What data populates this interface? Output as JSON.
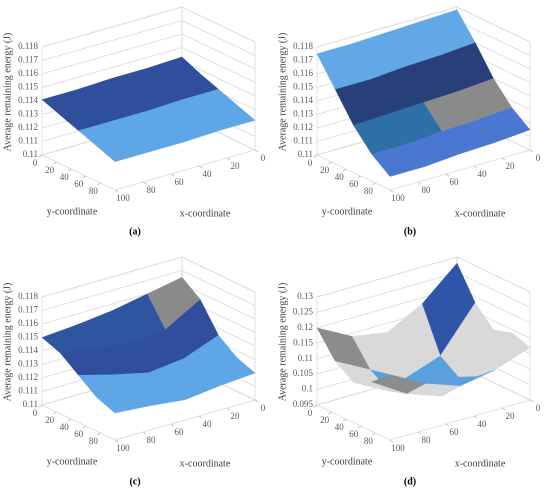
{
  "chart_data": [
    {
      "type": "surface",
      "label": "(a)",
      "zlabel": "Average remaining energy (J)",
      "xlabel": "x-coordinate",
      "ylabel": "y-coordinate",
      "x": [
        0,
        25,
        50,
        75,
        100
      ],
      "y": [
        0,
        25,
        50,
        75,
        100
      ],
      "xlim": [
        0,
        100
      ],
      "ylim": [
        0,
        100
      ],
      "xticks": [
        0,
        20,
        40,
        60,
        80,
        100
      ],
      "yticks": [
        0,
        20,
        40,
        60,
        80
      ],
      "zlim": [
        0.11,
        0.118
      ],
      "zticks": [
        0.11,
        0.111,
        0.112,
        0.113,
        0.114,
        0.115,
        0.116,
        0.117,
        0.118
      ],
      "colors": [
        "#4a78d0",
        "#3f7cc4",
        "#5ea6e6",
        "#2f4f9c",
        "#8a8a8a",
        "#27407a",
        "#63a8e6",
        "#6fb0ea"
      ],
      "z": [
        [
          0.1143,
          0.1142,
          0.1142,
          0.1141,
          0.1141
        ],
        [
          0.1137,
          0.1137,
          0.1136,
          0.1136,
          0.1136
        ],
        [
          0.1132,
          0.1132,
          0.1131,
          0.1131,
          0.1131
        ],
        [
          0.1127,
          0.1127,
          0.1126,
          0.1126,
          0.1126
        ],
        [
          0.1122,
          0.1122,
          0.1121,
          0.1121,
          0.1121
        ]
      ]
    },
    {
      "type": "surface",
      "label": "(b)",
      "zlabel": "Average remaining energy (J)",
      "xlabel": "x-coordinate",
      "ylabel": "y-coordinate",
      "x": [
        0,
        25,
        50,
        75,
        100
      ],
      "y": [
        0,
        25,
        50,
        75,
        100
      ],
      "xlim": [
        0,
        100
      ],
      "ylim": [
        0,
        100
      ],
      "xticks": [
        0,
        20,
        40,
        60,
        80,
        100
      ],
      "yticks": [
        0,
        20,
        40,
        60,
        80
      ],
      "zlim": [
        0.11,
        0.118
      ],
      "zticks": [
        0.11,
        0.111,
        0.112,
        0.113,
        0.114,
        0.115,
        0.116,
        0.117,
        0.118
      ],
      "colors": [
        "#4a78d0",
        "#4a78d0",
        "#2f6fa8",
        "#8a8a8a",
        "#27407a",
        "#2f55a0",
        "#63a8e6",
        "#6fb0ea"
      ],
      "z": [
        [
          0.1178,
          0.1177,
          0.1176,
          0.1175,
          0.1175
        ],
        [
          0.116,
          0.1158,
          0.1157,
          0.1155,
          0.1155
        ],
        [
          0.114,
          0.1138,
          0.1137,
          0.1136,
          0.1135
        ],
        [
          0.1125,
          0.1123,
          0.1122,
          0.112,
          0.112
        ],
        [
          0.1115,
          0.1113,
          0.1112,
          0.111,
          0.111
        ]
      ]
    },
    {
      "type": "surface",
      "label": "(c)",
      "zlabel": "Average remaining energy (J)",
      "xlabel": "x-coordinate",
      "ylabel": "y-coordinate",
      "x": [
        0,
        25,
        50,
        75,
        100
      ],
      "y": [
        0,
        25,
        50,
        75,
        100
      ],
      "xlim": [
        0,
        100
      ],
      "ylim": [
        0,
        100
      ],
      "xticks": [
        0,
        20,
        40,
        60,
        80,
        100
      ],
      "yticks": [
        0,
        20,
        40,
        60,
        80
      ],
      "zlim": [
        0.11,
        0.118
      ],
      "zticks": [
        0.11,
        0.111,
        0.112,
        0.113,
        0.114,
        0.115,
        0.116,
        0.117,
        0.118
      ],
      "colors": [
        "#4a78d0",
        "#5ea6e6",
        "#5ea6e6",
        "#2f4f9c",
        "#2f55a0",
        "#8a8a8a",
        "#2f55a0",
        "#6fb0ea"
      ],
      "z": [
        [
          0.1165,
          0.116,
          0.1155,
          0.1152,
          0.115
        ],
        [
          0.1155,
          0.114,
          0.1138,
          0.1142,
          0.1145
        ],
        [
          0.1135,
          0.1125,
          0.1122,
          0.1128,
          0.1135
        ],
        [
          0.1125,
          0.1122,
          0.1118,
          0.1122,
          0.1125
        ],
        [
          0.112,
          0.1118,
          0.1115,
          0.1118,
          0.112
        ]
      ]
    },
    {
      "type": "surface",
      "label": "(d)",
      "zlabel": "Average remaining energy (J)",
      "xlabel": "x-coordinate",
      "ylabel": "y-coordinate",
      "x": [
        0,
        25,
        50,
        75,
        100
      ],
      "y": [
        0,
        25,
        50,
        75,
        100
      ],
      "xlim": [
        0,
        100
      ],
      "ylim": [
        0,
        100
      ],
      "xticks": [
        0,
        20,
        40,
        60,
        80,
        100
      ],
      "yticks": [
        0,
        20,
        40,
        60,
        80
      ],
      "zlim": [
        0.095,
        0.13
      ],
      "zticks": [
        0.095,
        0.1,
        0.105,
        0.11,
        0.115,
        0.12,
        0.125,
        0.13
      ],
      "colors": [
        "#2b2f3a",
        "#5aa0de",
        "#d9d9d9",
        "#8c8c8c",
        "#2f55a8",
        "#3a6fc8",
        "#7f7f7f"
      ],
      "z": [
        [
          0.128,
          0.118,
          0.112,
          0.114,
          0.12
        ],
        [
          0.118,
          0.104,
          0.1,
          0.106,
          0.112
        ],
        [
          0.112,
          0.1,
          0.098,
          0.102,
          0.108
        ],
        [
          0.114,
          0.103,
          0.1,
          0.104,
          0.111
        ],
        [
          0.112,
          0.108,
          0.106,
          0.11,
          0.116
        ]
      ]
    }
  ]
}
